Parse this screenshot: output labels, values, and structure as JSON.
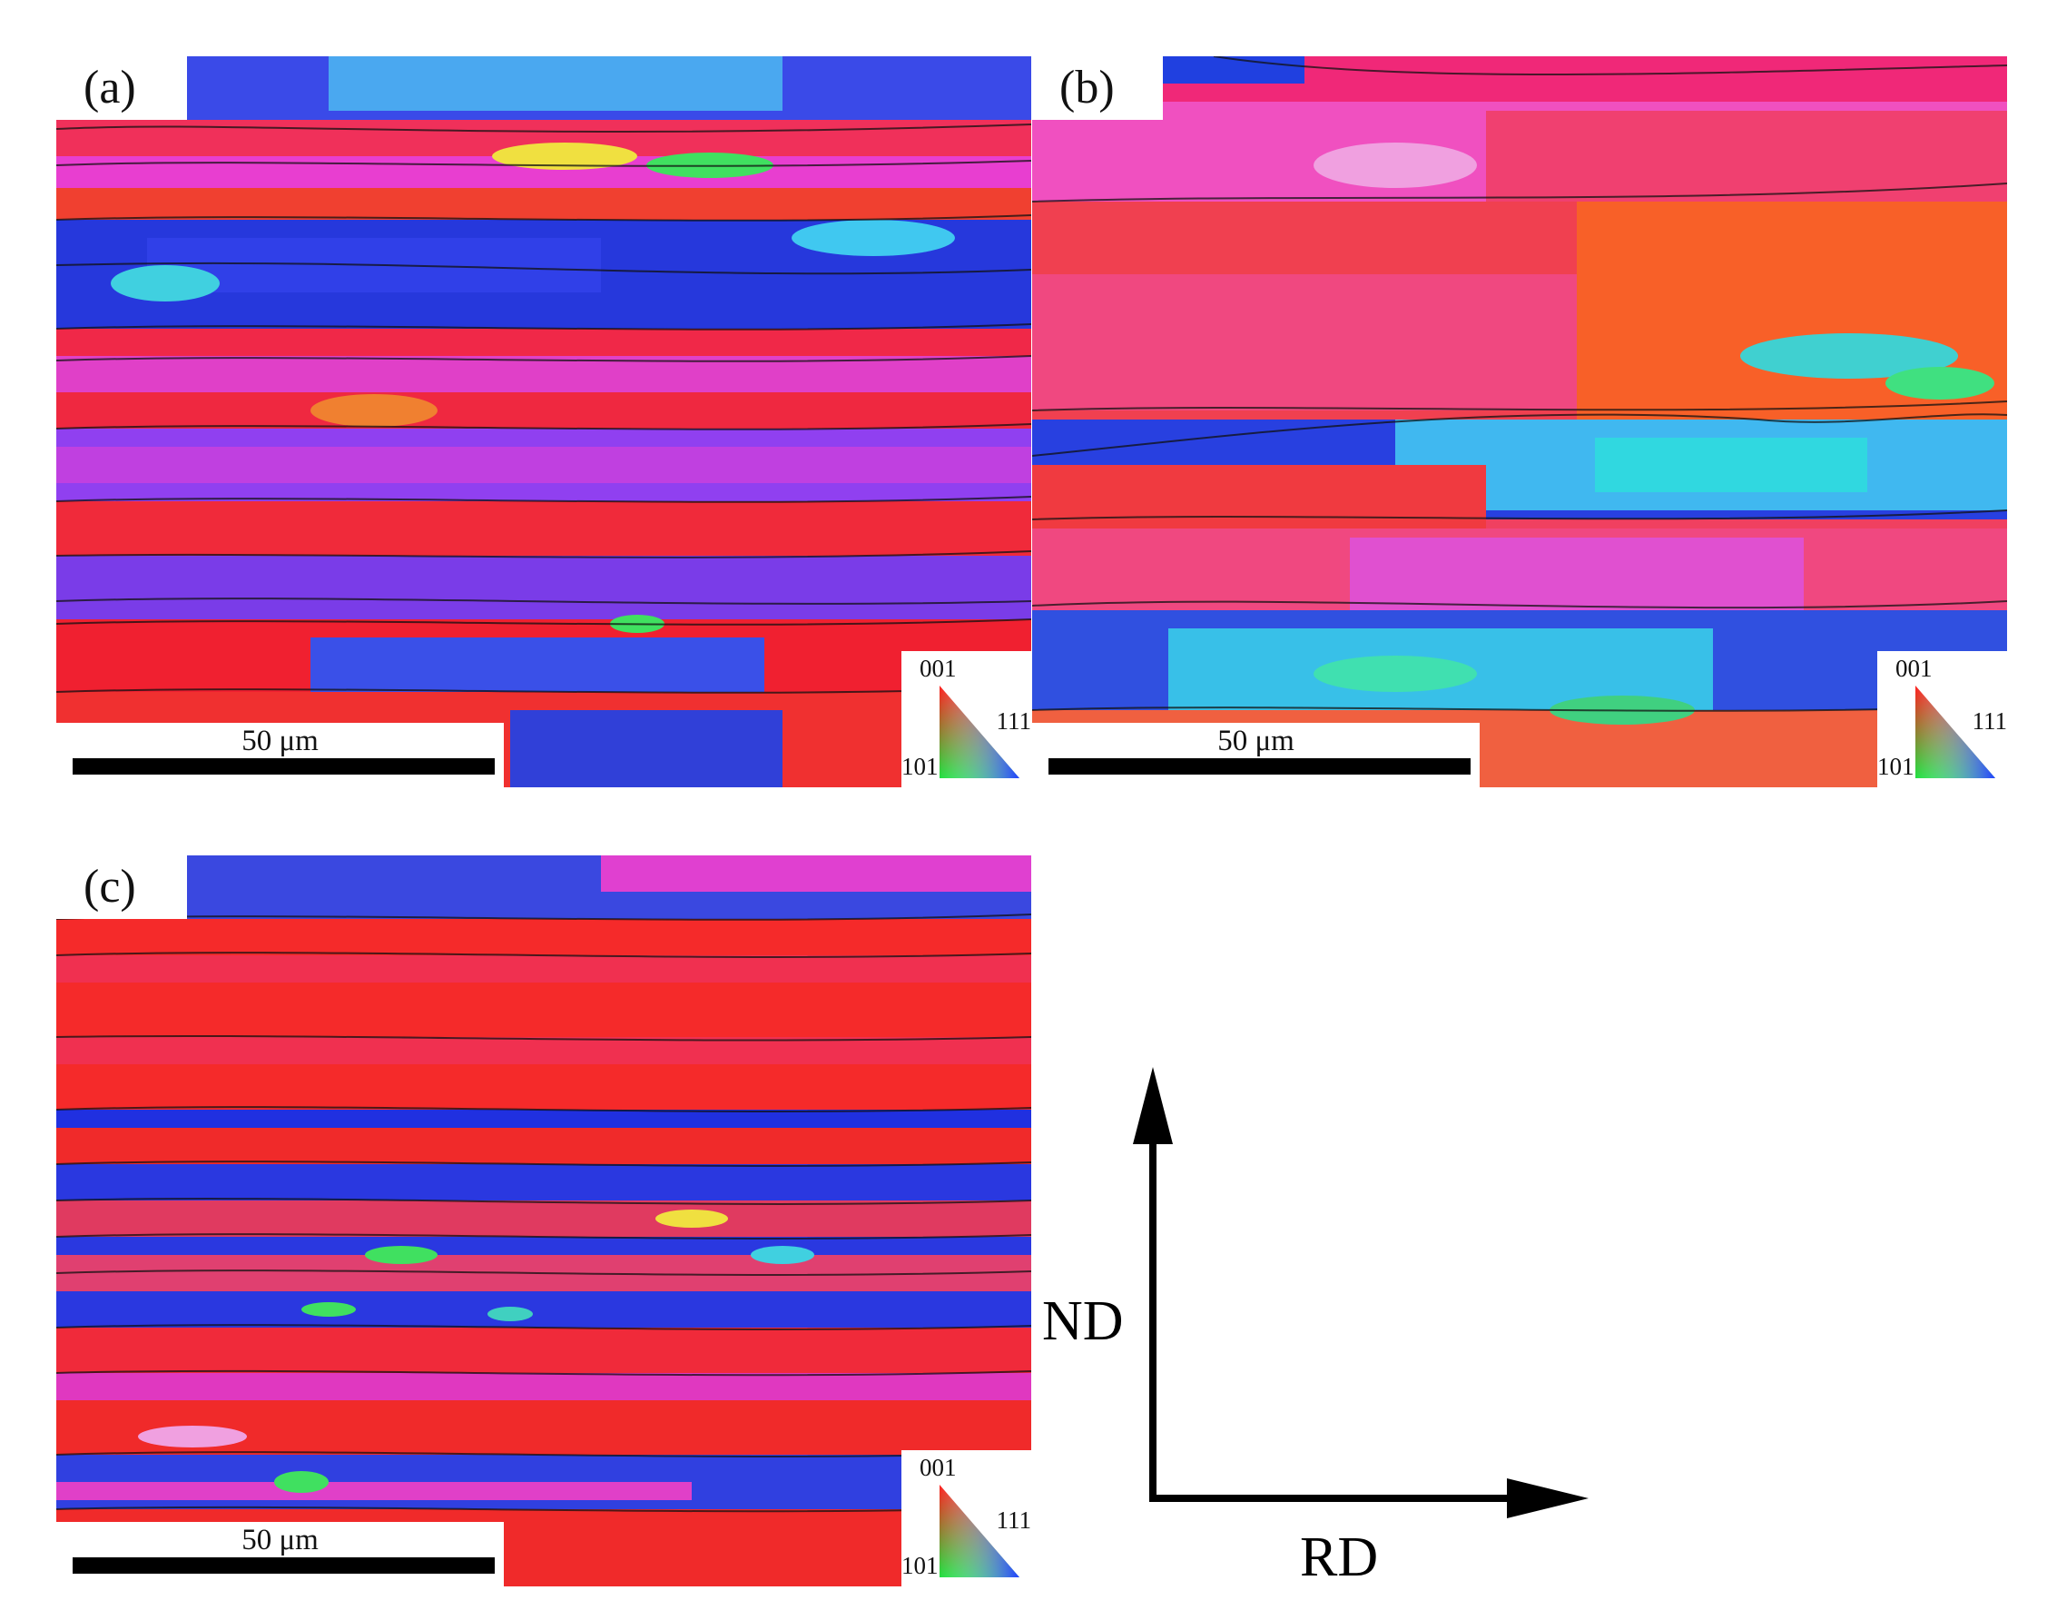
{
  "panels": [
    {
      "label": "(a)",
      "scale_label": "50 μm"
    },
    {
      "label": "(b)",
      "scale_label": "50 μm"
    },
    {
      "label": "(c)",
      "scale_label": "50 μm"
    }
  ],
  "ipf_key": {
    "top": "001",
    "right": "111",
    "left": "101"
  },
  "axes": {
    "vertical": "ND",
    "horizontal": "RD"
  },
  "colors": {
    "red_001": "#f01838",
    "blue_111": "#2030e0",
    "green_101": "#30e060",
    "magenta": "#e838d8",
    "orange": "#f86020",
    "cyan": "#30d8e8",
    "violet": "#8040f0"
  }
}
